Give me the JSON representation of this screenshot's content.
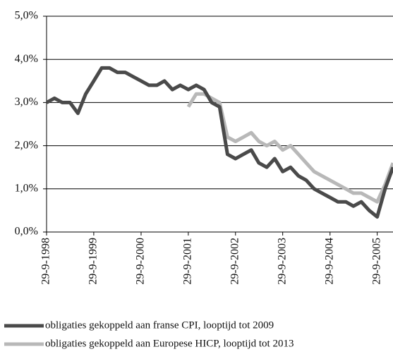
{
  "chart_data": {
    "type": "line",
    "x": [
      "1998-09-29",
      "1998-11-29",
      "1999-01-29",
      "1999-03-29",
      "1999-05-29",
      "1999-07-29",
      "1999-09-29",
      "1999-11-29",
      "2000-01-29",
      "2000-03-29",
      "2000-05-29",
      "2000-07-29",
      "2000-09-29",
      "2000-11-29",
      "2001-01-29",
      "2001-03-29",
      "2001-05-29",
      "2001-07-29",
      "2001-09-29",
      "2001-11-29",
      "2002-01-29",
      "2002-03-29",
      "2002-05-29",
      "2002-07-29",
      "2002-09-29",
      "2002-11-29",
      "2003-01-29",
      "2003-03-29",
      "2003-05-29",
      "2003-07-29",
      "2003-09-29",
      "2003-11-29",
      "2004-01-29",
      "2004-03-29",
      "2004-05-29",
      "2004-07-29",
      "2004-09-29",
      "2004-11-29",
      "2005-01-29",
      "2005-03-29",
      "2005-05-29",
      "2005-07-29",
      "2005-09-29",
      "2005-11-29",
      "2006-01-29"
    ],
    "series": [
      {
        "name": "obligaties gekoppeld aan franse CPI, looptijd tot 2009",
        "color": "#4a4a4a",
        "values": [
          3.0,
          3.1,
          3.0,
          3.0,
          2.75,
          3.2,
          3.5,
          3.8,
          3.8,
          3.7,
          3.7,
          3.6,
          3.5,
          3.4,
          3.4,
          3.5,
          3.3,
          3.4,
          3.3,
          3.4,
          3.3,
          3.0,
          2.9,
          1.8,
          1.7,
          1.8,
          1.9,
          1.6,
          1.5,
          1.7,
          1.4,
          1.5,
          1.3,
          1.2,
          1.0,
          0.9,
          0.8,
          0.7,
          0.7,
          0.6,
          0.7,
          0.5,
          0.35,
          1.0,
          1.5
        ]
      },
      {
        "name": "obligaties gekoppeld aan Europese HICP, looptijd tot 2013",
        "color": "#b8b8b8",
        "values": [
          null,
          null,
          null,
          null,
          null,
          null,
          null,
          null,
          null,
          null,
          null,
          null,
          null,
          null,
          null,
          null,
          null,
          null,
          2.9,
          3.2,
          3.2,
          3.1,
          3.0,
          2.2,
          2.1,
          2.2,
          2.3,
          2.1,
          2.0,
          2.1,
          1.9,
          2.0,
          1.8,
          1.6,
          1.4,
          1.3,
          1.2,
          1.1,
          1.0,
          0.9,
          0.9,
          0.8,
          0.7,
          1.1,
          1.6
        ]
      }
    ],
    "xlim": [
      "1998-09-29",
      "2006-01-29"
    ],
    "xticks": [
      {
        "value": "1998-09-29",
        "label": "29-9-1998"
      },
      {
        "value": "1999-09-29",
        "label": "29-9-1999"
      },
      {
        "value": "2000-09-29",
        "label": "29-9-2000"
      },
      {
        "value": "2001-09-29",
        "label": "29-9-2001"
      },
      {
        "value": "2002-09-29",
        "label": "29-9-2002"
      },
      {
        "value": "2003-09-29",
        "label": "29-9-2003"
      },
      {
        "value": "2004-09-29",
        "label": "29-9-2004"
      },
      {
        "value": "2005-09-29",
        "label": "29-9-2005"
      }
    ],
    "ylim": [
      0,
      5
    ],
    "yticks": [
      {
        "value": 0,
        "label": "0,0%"
      },
      {
        "value": 1,
        "label": "1,0%"
      },
      {
        "value": 2,
        "label": "2,0%"
      },
      {
        "value": 3,
        "label": "3,0%"
      },
      {
        "value": 4,
        "label": "4,0%"
      },
      {
        "value": 5,
        "label": "5,0%"
      }
    ],
    "grid": true
  }
}
